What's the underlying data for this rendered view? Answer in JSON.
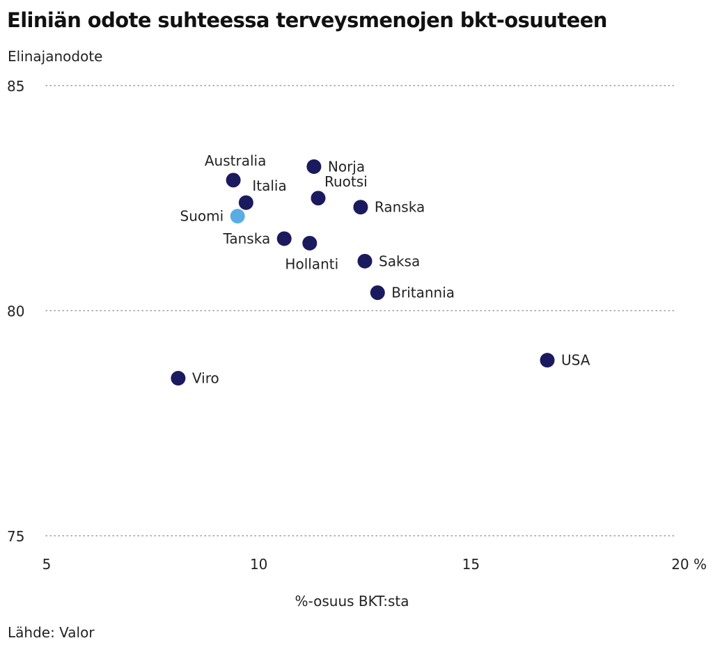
{
  "chart_data": {
    "type": "scatter",
    "title": "Eliniän odote suhteessa terveysmenojen bkt-osuuteen",
    "ylabel": "Elinajanodote",
    "xlabel": "%-osuus BKT:sta",
    "source": "Lähde: Valor",
    "xlim": [
      5,
      20
    ],
    "ylim": [
      75,
      85
    ],
    "x_ticks": [
      {
        "value": 5,
        "label": "5"
      },
      {
        "value": 10,
        "label": "10"
      },
      {
        "value": 15,
        "label": "15"
      },
      {
        "value": 20,
        "label": "20 %"
      }
    ],
    "y_ticks": [
      {
        "value": 75,
        "label": "75"
      },
      {
        "value": 80,
        "label": "80"
      },
      {
        "value": 85,
        "label": "85"
      }
    ],
    "grid": "horizontal dotted",
    "colors": {
      "default": "#1c1a5e",
      "highlight": "#5aade3"
    },
    "points": [
      {
        "label": "Australia",
        "x": 9.4,
        "y": 82.9,
        "label_pos": "above"
      },
      {
        "label": "Norja",
        "x": 11.3,
        "y": 83.2,
        "label_pos": "right"
      },
      {
        "label": "Italia",
        "x": 9.7,
        "y": 82.4,
        "label_pos": "above-right"
      },
      {
        "label": "Ruotsi",
        "x": 11.4,
        "y": 82.5,
        "label_pos": "above-right"
      },
      {
        "label": "Ranska",
        "x": 12.4,
        "y": 82.3,
        "label_pos": "right"
      },
      {
        "label": "Suomi",
        "x": 9.5,
        "y": 82.1,
        "label_pos": "left",
        "highlight": true
      },
      {
        "label": "Tanska",
        "x": 10.6,
        "y": 81.6,
        "label_pos": "left"
      },
      {
        "label": "Hollanti",
        "x": 11.2,
        "y": 81.5,
        "label_pos": "below"
      },
      {
        "label": "Saksa",
        "x": 12.5,
        "y": 81.1,
        "label_pos": "right"
      },
      {
        "label": "Britannia",
        "x": 12.8,
        "y": 80.4,
        "label_pos": "right"
      },
      {
        "label": "USA",
        "x": 16.8,
        "y": 78.9,
        "label_pos": "right"
      },
      {
        "label": "Viro",
        "x": 8.1,
        "y": 78.5,
        "label_pos": "right"
      }
    ]
  }
}
